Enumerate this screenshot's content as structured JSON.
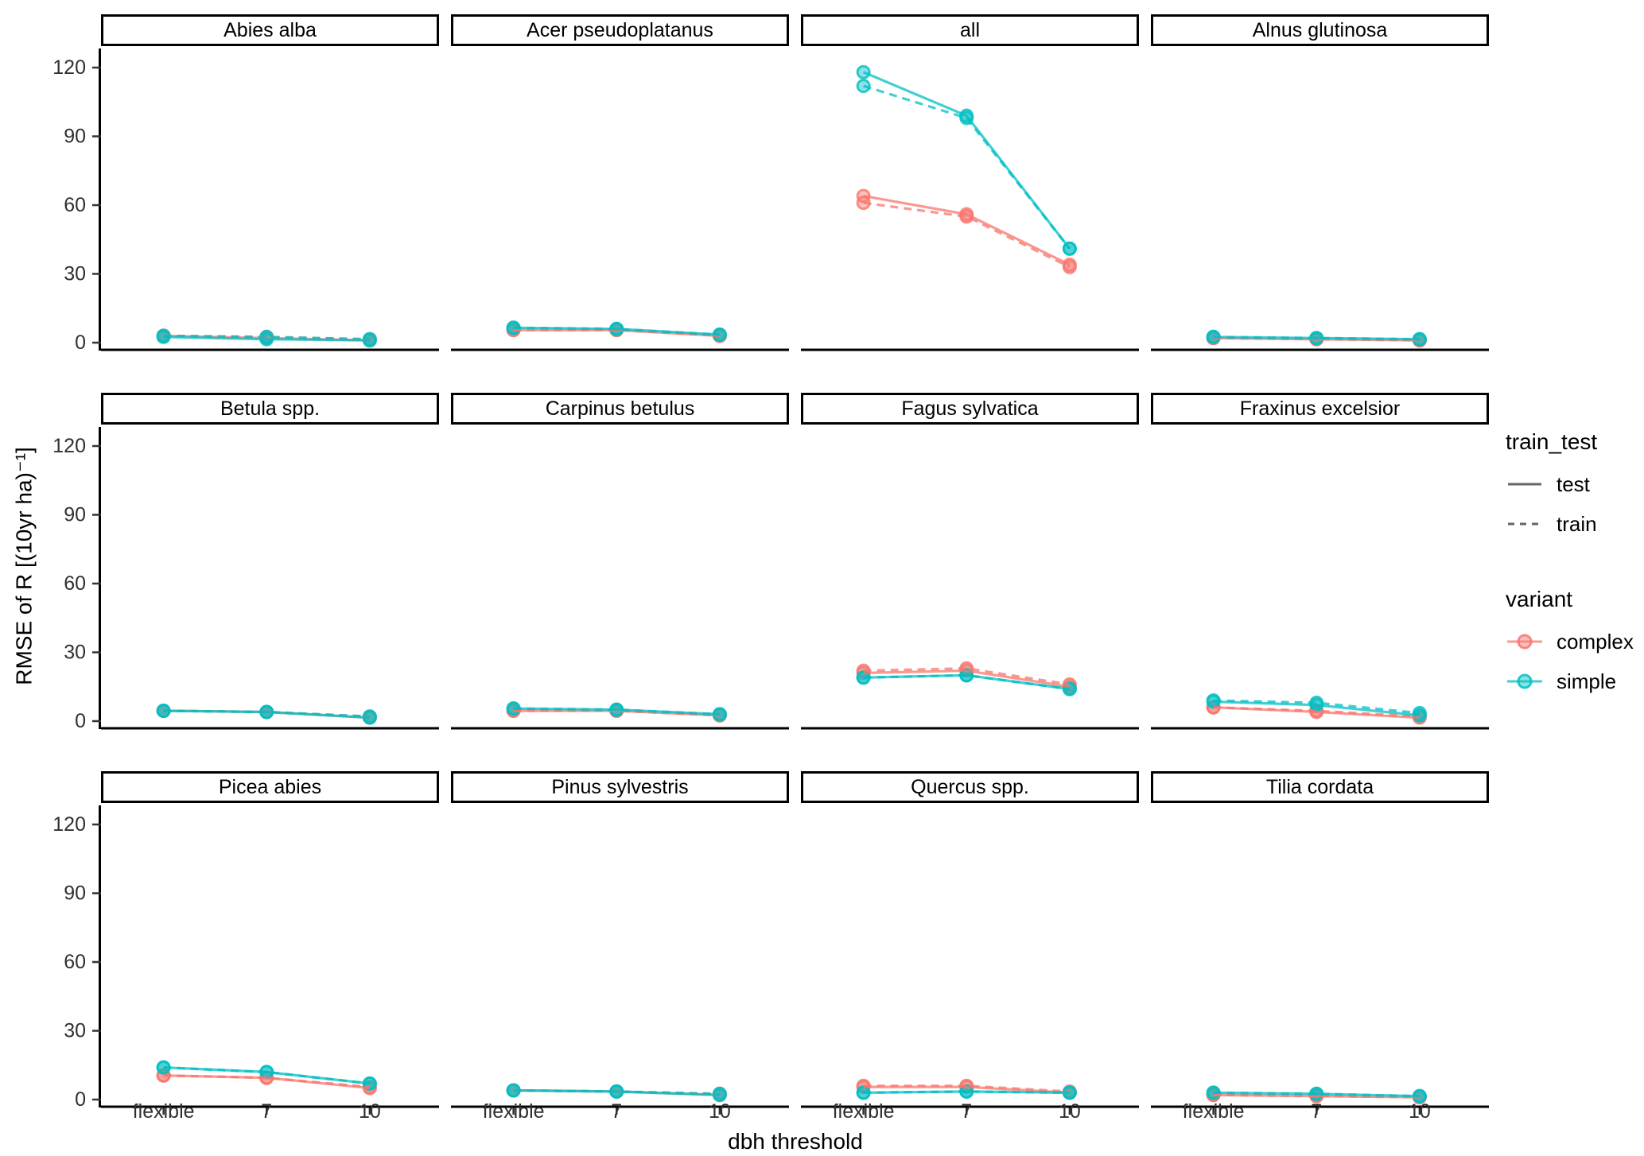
{
  "chart_data": {
    "type": "line",
    "facet_layout": {
      "rows": 3,
      "cols": 4,
      "shared_axes": true
    },
    "x": {
      "label": "dbh threshold",
      "categories": [
        "flexible",
        "7",
        "10"
      ]
    },
    "y": {
      "label": "RMSE of R [(10yr ha)⁻¹]",
      "ticks": [
        0,
        30,
        60,
        90,
        120
      ],
      "range": [
        0,
        126
      ]
    },
    "grid": "off",
    "legend_position": "right",
    "colors": {
      "complex": "#F8766D",
      "simple": "#00BFC4"
    },
    "linetypes": {
      "test": "solid",
      "train": "dashed"
    },
    "facets": [
      {
        "title": "Abies alba",
        "series": [
          {
            "variant": "complex",
            "train_test": "test",
            "values": [
              3,
              2,
              1
            ]
          },
          {
            "variant": "complex",
            "train_test": "train",
            "values": [
              3,
              2.5,
              1.5
            ]
          },
          {
            "variant": "simple",
            "train_test": "test",
            "values": [
              2.5,
              1.5,
              1
            ]
          },
          {
            "variant": "simple",
            "train_test": "train",
            "values": [
              3,
              2.5,
              1.5
            ]
          }
        ]
      },
      {
        "title": "Acer pseudoplatanus",
        "series": [
          {
            "variant": "complex",
            "train_test": "test",
            "values": [
              5.5,
              5.5,
              3
            ]
          },
          {
            "variant": "complex",
            "train_test": "train",
            "values": [
              5.5,
              5.5,
              3
            ]
          },
          {
            "variant": "simple",
            "train_test": "test",
            "values": [
              6.5,
              6,
              3.5
            ]
          },
          {
            "variant": "simple",
            "train_test": "train",
            "values": [
              6.5,
              6,
              3.5
            ]
          }
        ]
      },
      {
        "title": "all",
        "series": [
          {
            "variant": "complex",
            "train_test": "test",
            "values": [
              64,
              56,
              34
            ]
          },
          {
            "variant": "complex",
            "train_test": "train",
            "values": [
              61,
              55,
              33
            ]
          },
          {
            "variant": "simple",
            "train_test": "test",
            "values": [
              118,
              99,
              41
            ]
          },
          {
            "variant": "simple",
            "train_test": "train",
            "values": [
              112,
              98,
              41
            ]
          }
        ]
      },
      {
        "title": "Alnus glutinosa",
        "series": [
          {
            "variant": "complex",
            "train_test": "test",
            "values": [
              2,
              1.5,
              1
            ]
          },
          {
            "variant": "complex",
            "train_test": "train",
            "values": [
              2,
              1.5,
              1
            ]
          },
          {
            "variant": "simple",
            "train_test": "test",
            "values": [
              2.5,
              2,
              1.5
            ]
          },
          {
            "variant": "simple",
            "train_test": "train",
            "values": [
              2.5,
              2,
              1.5
            ]
          }
        ]
      },
      {
        "title": "Betula spp.",
        "series": [
          {
            "variant": "complex",
            "train_test": "test",
            "values": [
              4.5,
              4,
              1.5
            ]
          },
          {
            "variant": "complex",
            "train_test": "train",
            "values": [
              4.5,
              4,
              2
            ]
          },
          {
            "variant": "simple",
            "train_test": "test",
            "values": [
              4.5,
              4,
              1.5
            ]
          },
          {
            "variant": "simple",
            "train_test": "train",
            "values": [
              4.5,
              4,
              2
            ]
          }
        ]
      },
      {
        "title": "Carpinus betulus",
        "series": [
          {
            "variant": "complex",
            "train_test": "test",
            "values": [
              4.5,
              4.5,
              2.5
            ]
          },
          {
            "variant": "complex",
            "train_test": "train",
            "values": [
              4.5,
              4.5,
              2.5
            ]
          },
          {
            "variant": "simple",
            "train_test": "test",
            "values": [
              5.5,
              5,
              3
            ]
          },
          {
            "variant": "simple",
            "train_test": "train",
            "values": [
              5.5,
              5,
              3
            ]
          }
        ]
      },
      {
        "title": "Fagus sylvatica",
        "series": [
          {
            "variant": "complex",
            "train_test": "test",
            "values": [
              21,
              22,
              15
            ]
          },
          {
            "variant": "complex",
            "train_test": "train",
            "values": [
              22,
              23,
              16
            ]
          },
          {
            "variant": "simple",
            "train_test": "test",
            "values": [
              19,
              20,
              14
            ]
          },
          {
            "variant": "simple",
            "train_test": "train",
            "values": [
              19,
              20,
              14
            ]
          }
        ]
      },
      {
        "title": "Fraxinus excelsior",
        "series": [
          {
            "variant": "complex",
            "train_test": "test",
            "values": [
              6,
              4,
              1.5
            ]
          },
          {
            "variant": "complex",
            "train_test": "train",
            "values": [
              6,
              4.5,
              2
            ]
          },
          {
            "variant": "simple",
            "train_test": "test",
            "values": [
              8.5,
              7,
              2.5
            ]
          },
          {
            "variant": "simple",
            "train_test": "train",
            "values": [
              9,
              8,
              3.5
            ]
          }
        ]
      },
      {
        "title": "Picea abies",
        "series": [
          {
            "variant": "complex",
            "train_test": "test",
            "values": [
              10.5,
              9.5,
              5
            ]
          },
          {
            "variant": "complex",
            "train_test": "train",
            "values": [
              10.5,
              9.5,
              5.5
            ]
          },
          {
            "variant": "simple",
            "train_test": "test",
            "values": [
              14,
              12,
              7
            ]
          },
          {
            "variant": "simple",
            "train_test": "train",
            "values": [
              14,
              12,
              7
            ]
          }
        ]
      },
      {
        "title": "Pinus sylvestris",
        "series": [
          {
            "variant": "complex",
            "train_test": "test",
            "values": [
              4,
              3.5,
              2
            ]
          },
          {
            "variant": "complex",
            "train_test": "train",
            "values": [
              4,
              3.5,
              2.5
            ]
          },
          {
            "variant": "simple",
            "train_test": "test",
            "values": [
              4,
              3.5,
              2
            ]
          },
          {
            "variant": "simple",
            "train_test": "train",
            "values": [
              4,
              3.5,
              2.5
            ]
          }
        ]
      },
      {
        "title": "Quercus spp.",
        "series": [
          {
            "variant": "complex",
            "train_test": "test",
            "values": [
              5.5,
              5.5,
              3
            ]
          },
          {
            "variant": "complex",
            "train_test": "train",
            "values": [
              6,
              6,
              3.5
            ]
          },
          {
            "variant": "simple",
            "train_test": "test",
            "values": [
              3,
              3.5,
              3
            ]
          },
          {
            "variant": "simple",
            "train_test": "train",
            "values": [
              3,
              3.5,
              3
            ]
          }
        ]
      },
      {
        "title": "Tilia cordata",
        "series": [
          {
            "variant": "complex",
            "train_test": "test",
            "values": [
              2,
              1.5,
              1
            ]
          },
          {
            "variant": "complex",
            "train_test": "train",
            "values": [
              2,
              1.5,
              1
            ]
          },
          {
            "variant": "simple",
            "train_test": "test",
            "values": [
              3,
              2.5,
              1.5
            ]
          },
          {
            "variant": "simple",
            "train_test": "train",
            "values": [
              3,
              2.5,
              1.5
            ]
          }
        ]
      }
    ]
  },
  "legend": {
    "train_test": {
      "title": "train_test",
      "items": [
        {
          "label": "test",
          "linetype": "solid"
        },
        {
          "label": "train",
          "linetype": "dashed"
        }
      ]
    },
    "variant": {
      "title": "variant",
      "items": [
        {
          "label": "complex",
          "color": "#F8766D"
        },
        {
          "label": "simple",
          "color": "#00BFC4"
        }
      ]
    }
  }
}
